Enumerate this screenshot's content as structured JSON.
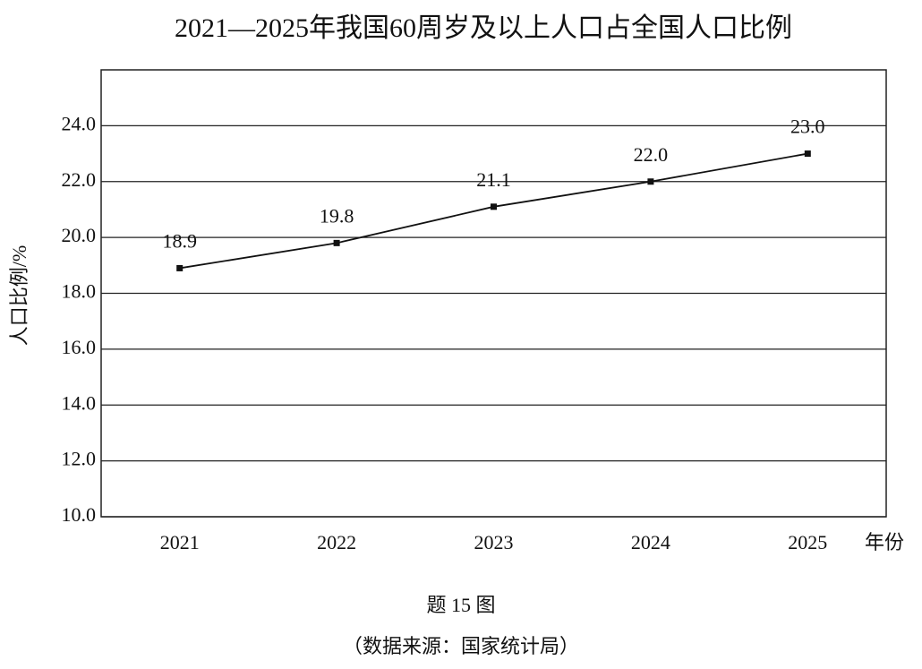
{
  "chart_data": {
    "type": "line",
    "title": "2021—2025年我国60周岁及以上人口占全国人口比例",
    "x_label": "年份",
    "y_label": "人口比例/%",
    "caption": "题 15 图",
    "source": "（数据来源：国家统计局）",
    "categories": [
      "2021",
      "2022",
      "2023",
      "2024",
      "2025"
    ],
    "values": [
      18.9,
      19.8,
      21.1,
      22.0,
      23.0
    ],
    "value_labels": [
      "18.9",
      "19.8",
      "21.1",
      "22.0",
      "23.0"
    ],
    "color": "#111111",
    "ylim": [
      10,
      26
    ],
    "yticks": [
      {
        "value": 10,
        "label": "10.0"
      },
      {
        "value": 12,
        "label": "12.0"
      },
      {
        "value": 14,
        "label": "14.0"
      },
      {
        "value": 16,
        "label": "16.0"
      },
      {
        "value": 18,
        "label": "18.0"
      },
      {
        "value": 20,
        "label": "20.0"
      },
      {
        "value": 22,
        "label": "22.0"
      },
      {
        "value": 24,
        "label": "24.0"
      }
    ],
    "grid": true
  }
}
